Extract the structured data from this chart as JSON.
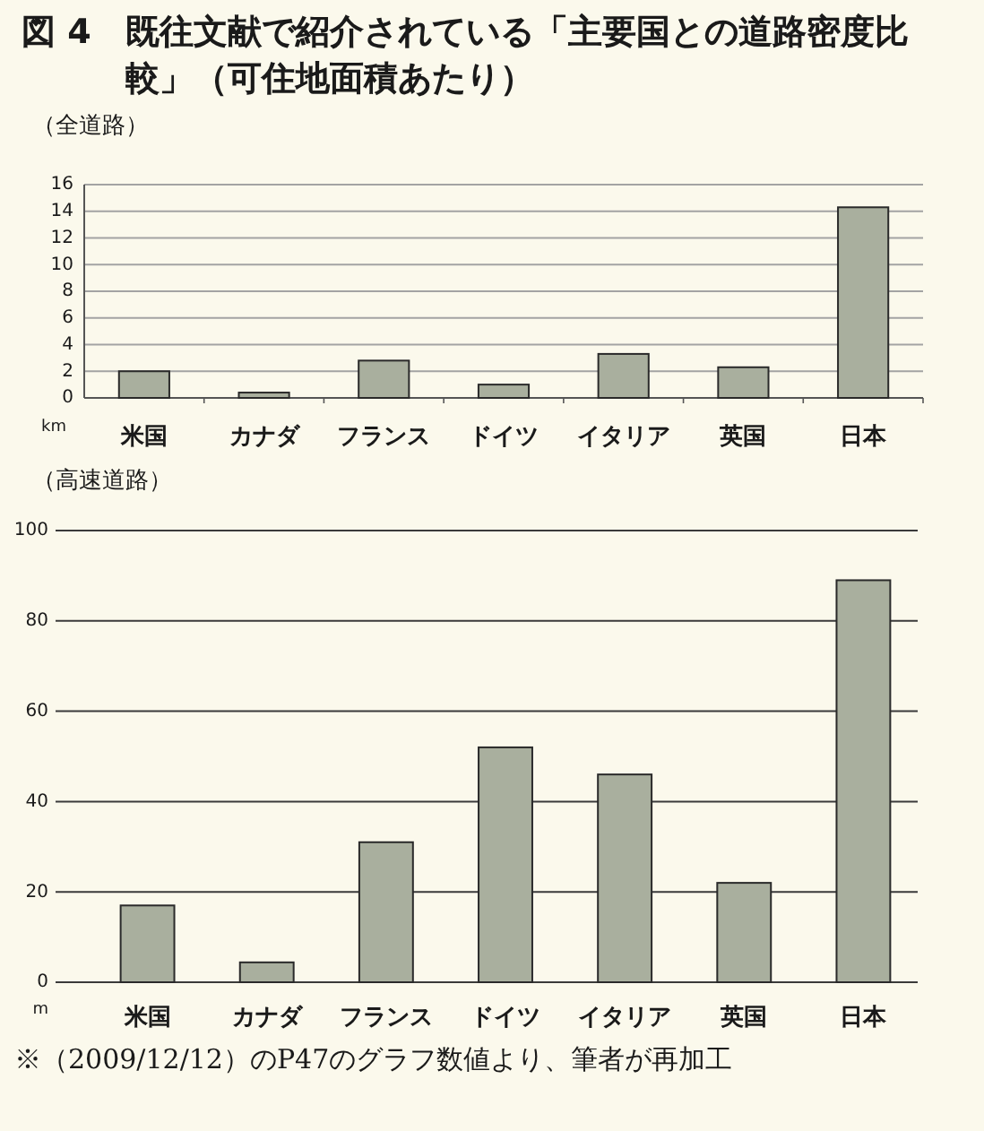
{
  "chart_data": [
    {
      "type": "bar",
      "title": "図 4　既往文献で紹介されている「主要国との道路密度比較」（可住地面積あたり）",
      "subtitle": "（全道路）",
      "ylabel": "km",
      "categories": [
        "米国",
        "カナダ",
        "フランス",
        "ドイツ",
        "イタリア",
        "英国",
        "日本"
      ],
      "values": [
        2.0,
        0.4,
        2.8,
        1.0,
        3.3,
        2.3,
        14.3
      ],
      "color": "#a9af9e",
      "ylim": [
        0,
        16
      ],
      "yticks": [
        0,
        2,
        4,
        6,
        8,
        10,
        12,
        14,
        16
      ],
      "grid": "y"
    },
    {
      "type": "bar",
      "title": "（高速道路）",
      "ylabel": "m",
      "categories": [
        "米国",
        "カナダ",
        "フランス",
        "ドイツ",
        "イタリア",
        "英国",
        "日本"
      ],
      "values": [
        17,
        4.4,
        31,
        52,
        46,
        22,
        89
      ],
      "color": "#a9af9e",
      "ylim": [
        0,
        100
      ],
      "yticks": [
        0,
        20,
        40,
        60,
        80,
        100
      ],
      "grid": "y",
      "annotations": [
        "※（2009/12/12）のP47のグラフ数値より、筆者が再加工"
      ]
    }
  ]
}
